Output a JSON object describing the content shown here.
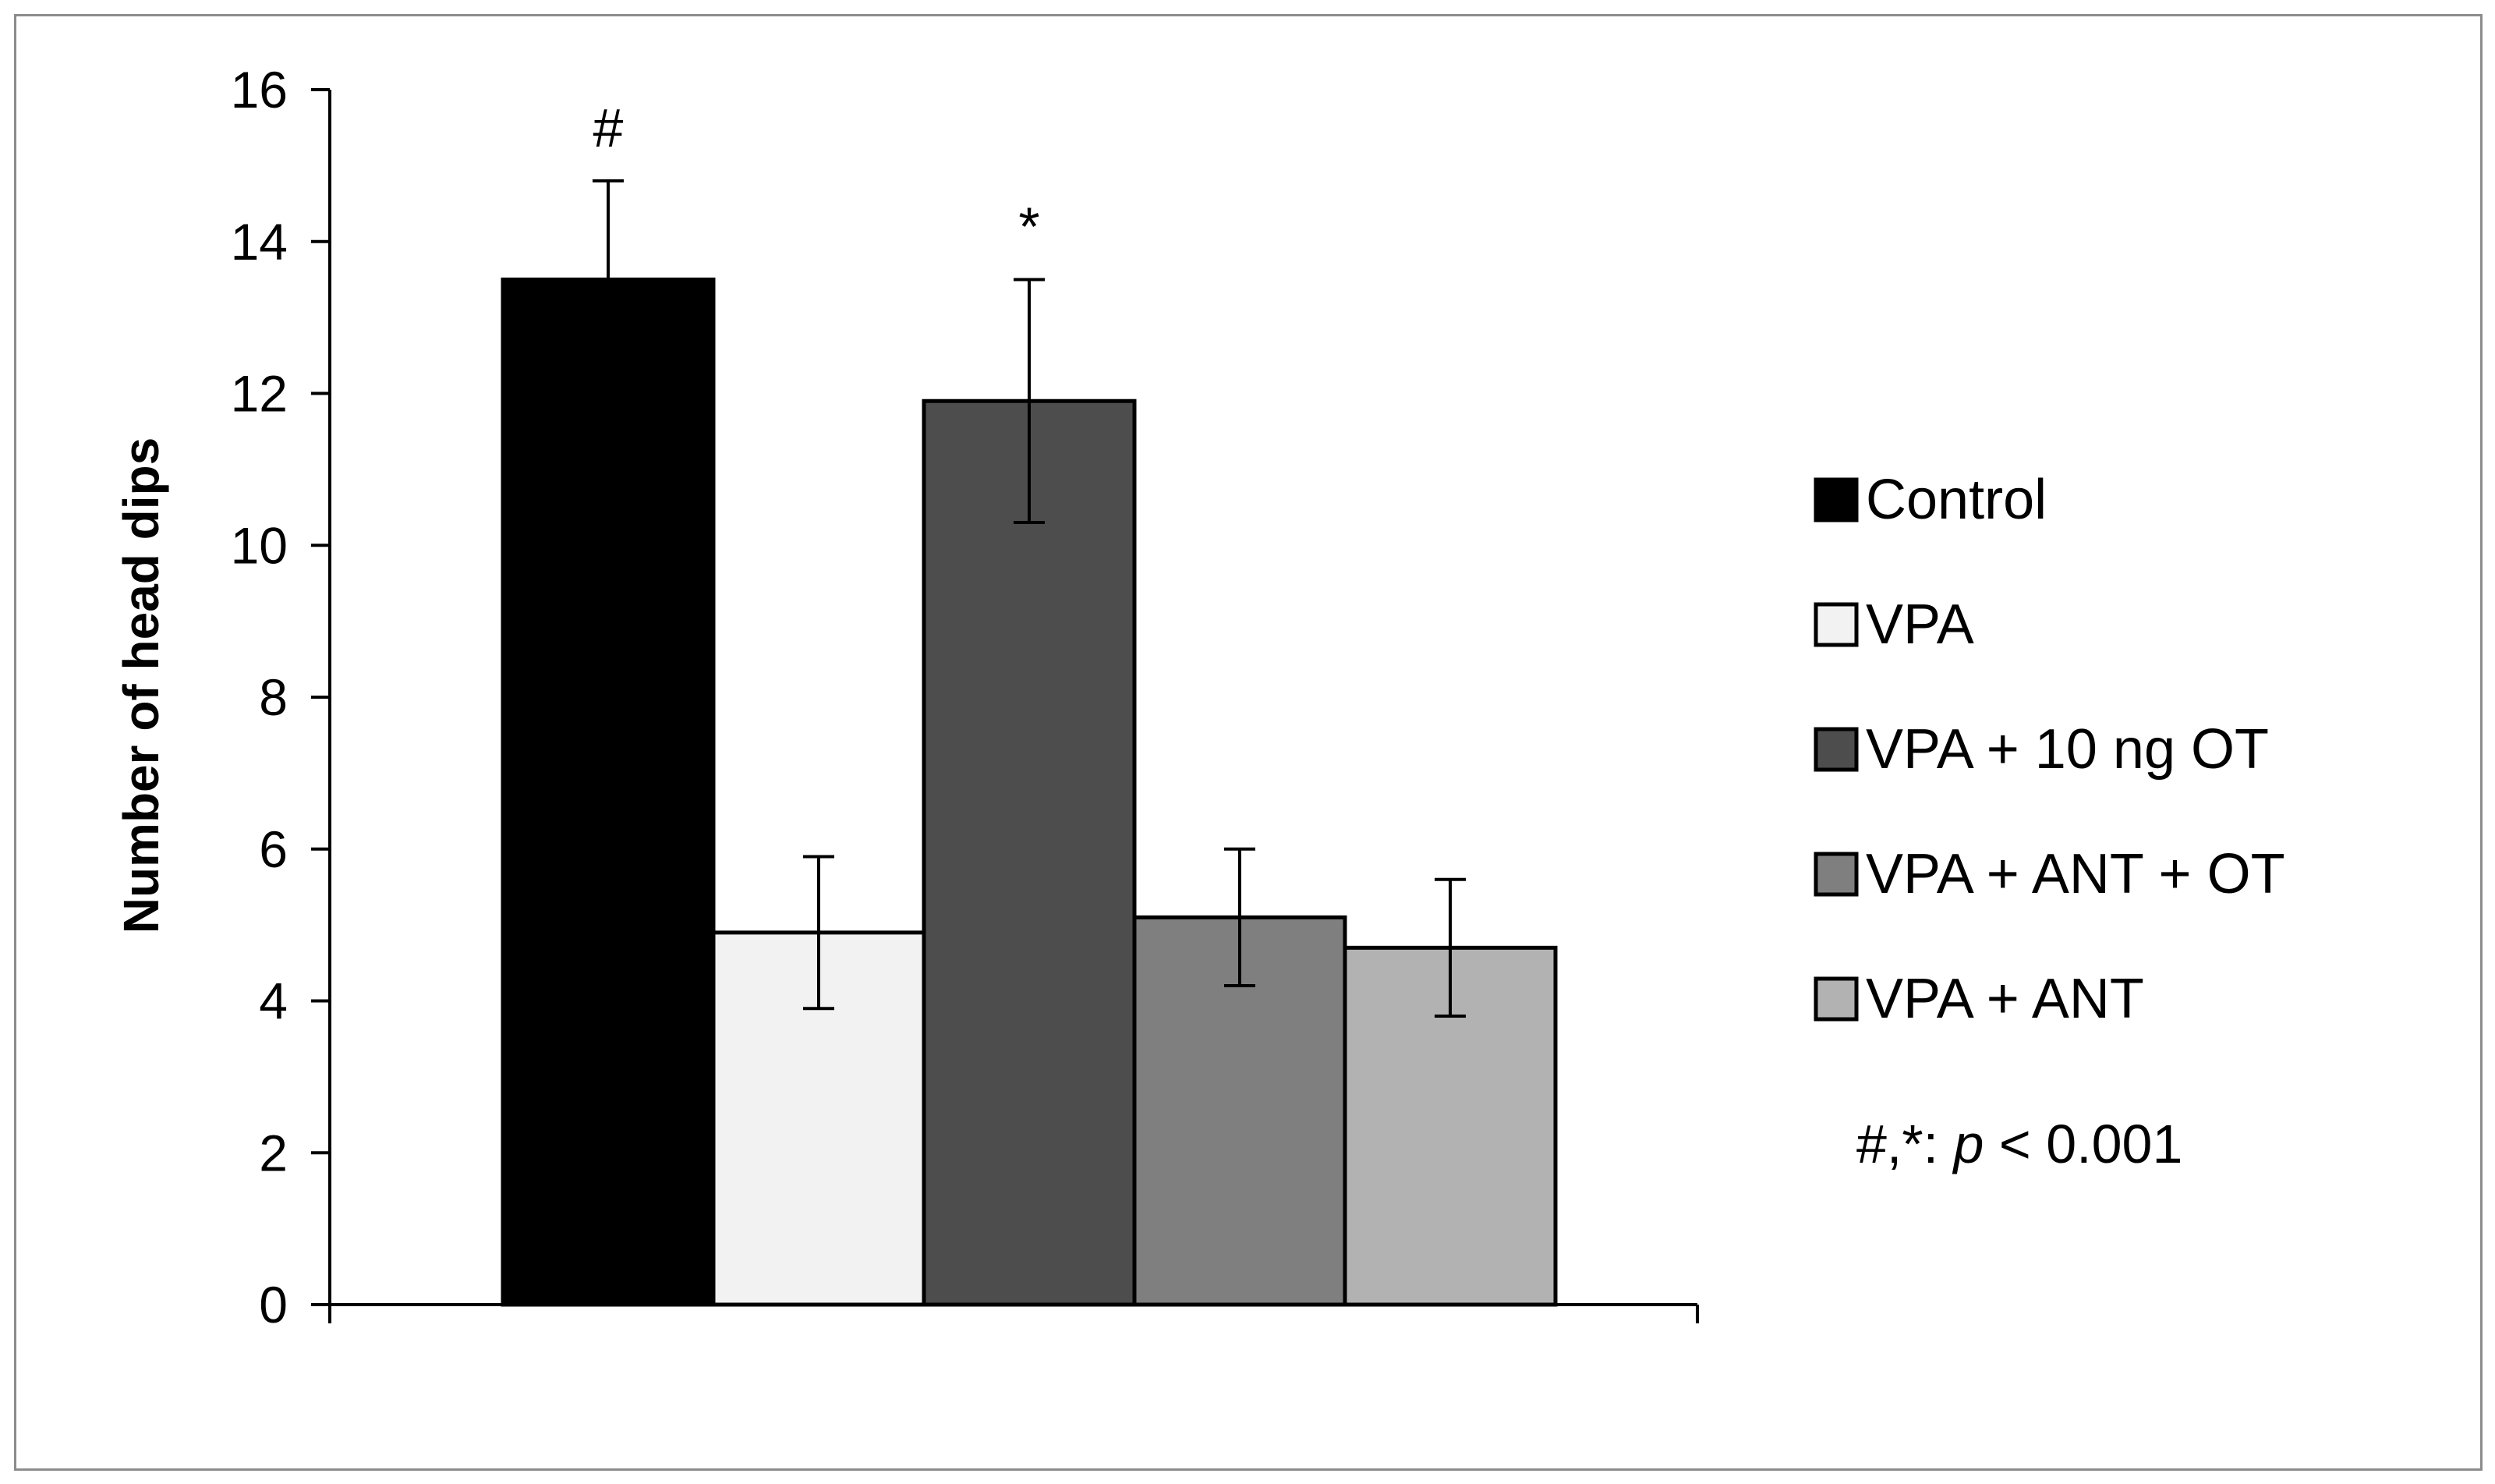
{
  "chart_data": {
    "type": "bar",
    "title": "",
    "xlabel": "",
    "ylabel": "Number of head dips",
    "ylim": [
      0,
      16
    ],
    "yticks": [
      0,
      2,
      4,
      6,
      8,
      10,
      12,
      14,
      16
    ],
    "grid": false,
    "legend_position": "right",
    "series": [
      {
        "name": "Control",
        "value": 13.5,
        "error": 1.3,
        "color": "#000000",
        "annotation": "#"
      },
      {
        "name": "VPA",
        "value": 4.9,
        "error": 1.0,
        "color": "#f2f2f2",
        "annotation": ""
      },
      {
        "name": "VPA + 10 ng OT",
        "value": 11.9,
        "error": 1.6,
        "color": "#4d4d4d",
        "annotation": "*"
      },
      {
        "name": "VPA + ANT + OT",
        "value": 5.1,
        "error": 0.9,
        "color": "#7f7f7f",
        "annotation": ""
      },
      {
        "name": "VPA + ANT",
        "value": 4.7,
        "error": 0.9,
        "color": "#b2b2b2",
        "annotation": ""
      }
    ],
    "note": {
      "prefix": "#,*: ",
      "italic": "p",
      "suffix": " < 0.001"
    }
  }
}
